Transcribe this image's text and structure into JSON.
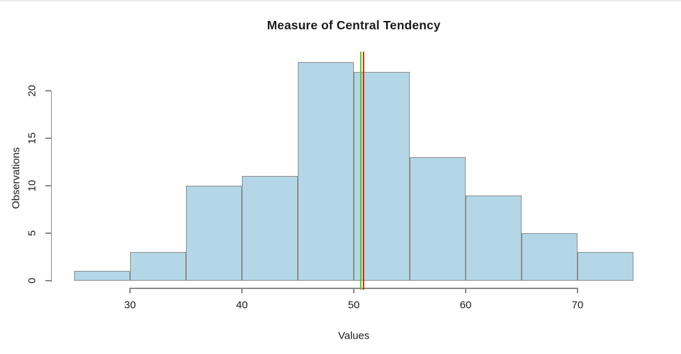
{
  "title": "Measure of Central Tendency",
  "chart_data": {
    "type": "bar",
    "subtype": "histogram",
    "title": "Measure of Central Tendency",
    "xlabel": "Values",
    "ylabel": "Observations",
    "bin_edges": [
      25,
      30,
      35,
      40,
      45,
      50,
      55,
      60,
      65,
      70,
      75
    ],
    "counts": [
      1,
      3,
      10,
      11,
      23,
      22,
      13,
      9,
      5,
      3
    ],
    "x_ticks": [
      30,
      40,
      50,
      60,
      70
    ],
    "y_ticks": [
      0,
      5,
      10,
      15,
      20
    ],
    "xlim": [
      25,
      75
    ],
    "ylim": [
      0,
      23
    ],
    "grid": false,
    "legend": "none",
    "bar_fill": "#b3d7e6",
    "bar_border": "#8c8c8c",
    "vlines": [
      {
        "name": "green-vertical-line",
        "x": 50.6,
        "color": "#4fd215"
      },
      {
        "name": "red-vertical-line",
        "x": 50.9,
        "color": "#ee2116"
      }
    ]
  }
}
